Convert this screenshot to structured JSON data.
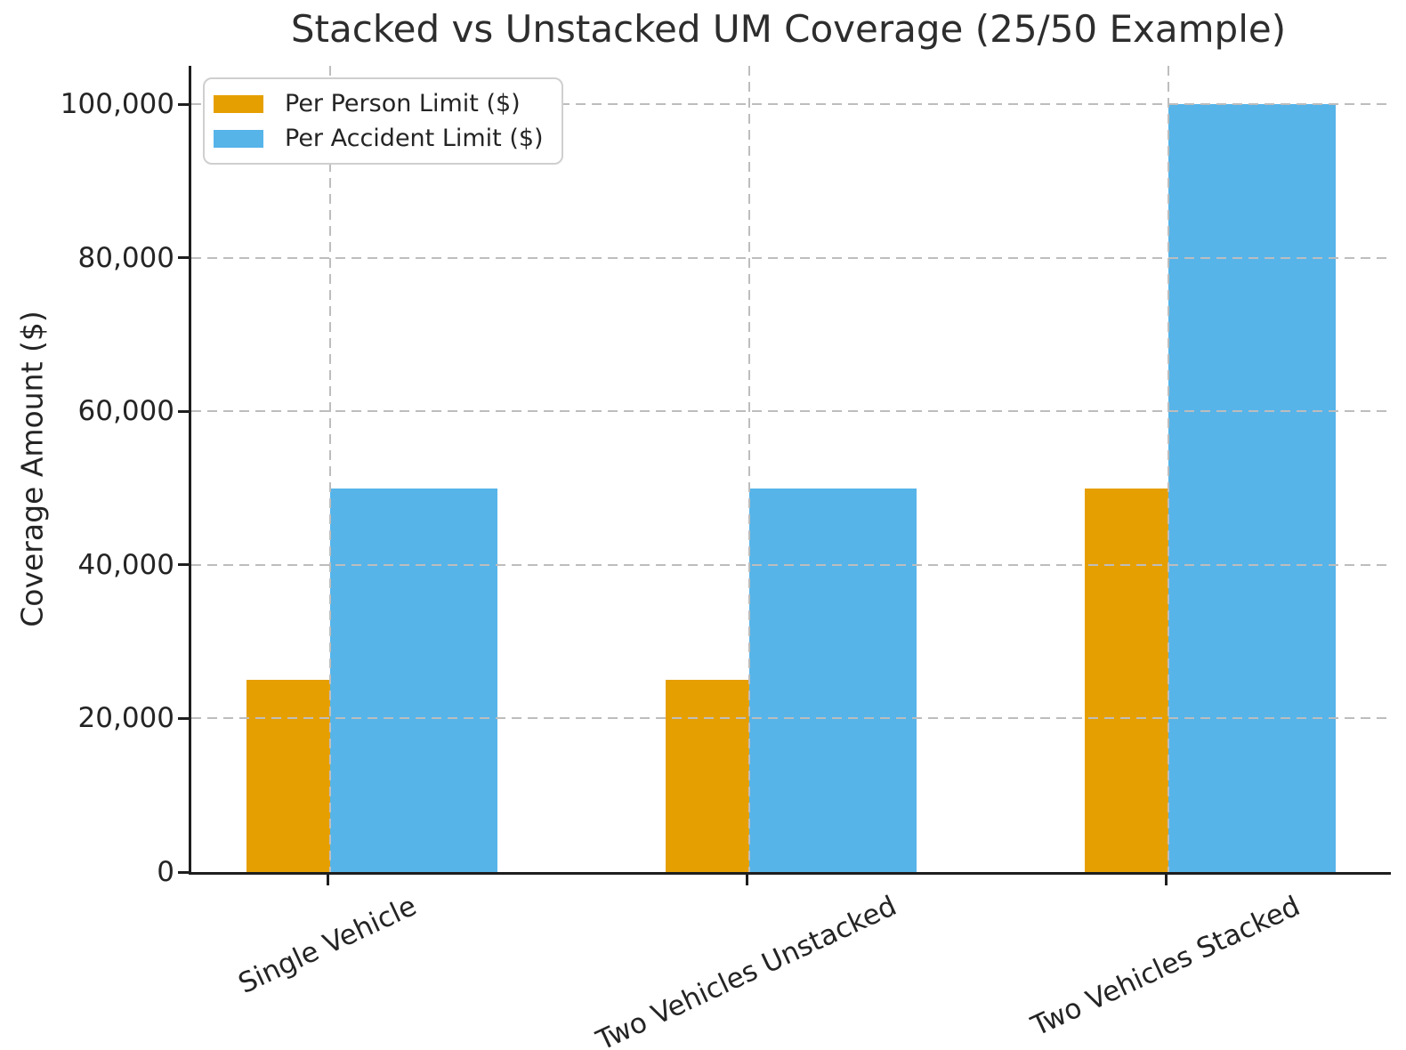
{
  "title": "Stacked vs Unstacked UM Coverage (25/50 Example)",
  "chart_data": {
    "type": "bar",
    "title": "Stacked vs Unstacked UM Coverage (25/50 Example)",
    "xlabel": "",
    "ylabel": "Coverage Amount ($)",
    "categories": [
      "Single Vehicle",
      "Two Vehicles Unstacked",
      "Two Vehicles Stacked"
    ],
    "series": [
      {
        "name": "Per Person Limit ($)",
        "color": "#E69F00",
        "values": [
          25000,
          25000,
          50000
        ]
      },
      {
        "name": "Per Accident Limit ($)",
        "color": "#56B4E9",
        "values": [
          50000,
          50000,
          100000
        ]
      }
    ],
    "yticks": {
      "values": [
        0,
        20000,
        40000,
        60000,
        80000,
        100000
      ],
      "labels": [
        "0",
        "20,000",
        "40,000",
        "60,000",
        "80,000",
        "100,000"
      ]
    },
    "ylim": [
      0,
      105000
    ],
    "grid": "dashed, horizontal and vertical, drawn over bars",
    "legend_position": "upper left",
    "x_tick_label_rotation_deg": 25,
    "bar_relative_widths": {
      "per_person": 0.2,
      "per_accident": 0.4
    }
  }
}
